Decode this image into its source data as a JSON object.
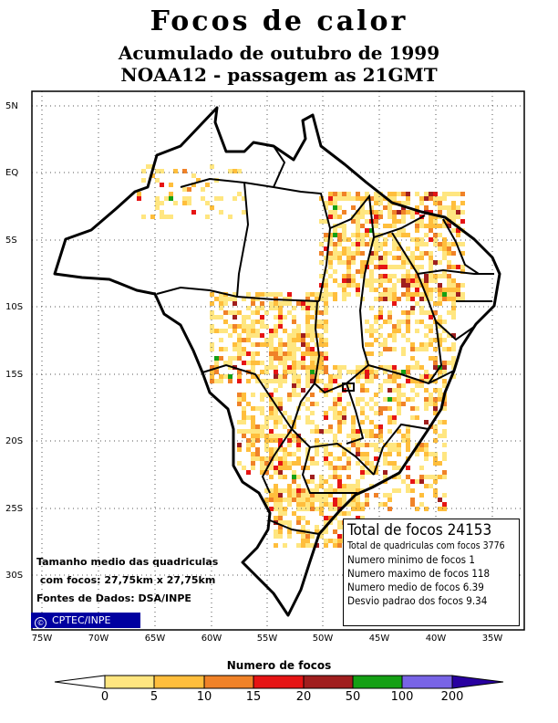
{
  "title": "Focos de calor",
  "subtitle1": "Acumulado de outubro de 1999",
  "subtitle2": "NOAA12 - passagem as 21GMT",
  "lat_labels": [
    "5N",
    "EQ",
    "5S",
    "10S",
    "15S",
    "20S",
    "25S",
    "30S"
  ],
  "lon_labels": [
    "75W",
    "70W",
    "65W",
    "60W",
    "55W",
    "50W",
    "45W",
    "40W",
    "35W"
  ],
  "stats": {
    "total": "Total de focos 24153",
    "quadriculas": "Total de quadriculas com focos 3776",
    "minimo": "Numero minimo de focos 1",
    "maximo": "Numero maximo de focos 118",
    "medio": "Numero medio de focos 6.39",
    "desvio": "Desvio padrao dos focos 9.34"
  },
  "info": {
    "line1": "Tamanho medio das quadriculas",
    "line2": " com focos: 27,75km x 27,75km",
    "line3": "Fontes de Dados: DSA/INPE"
  },
  "credit": {
    "copyright": "©",
    "text": "CPTEC/INPE"
  },
  "legend": {
    "title": "Numero de focos",
    "labels": [
      "0",
      "5",
      "10",
      "15",
      "20",
      "50",
      "100",
      "200"
    ],
    "colors": [
      "#ffffff",
      "#ffe680",
      "#ffbe3c",
      "#f08228",
      "#e61414",
      "#a01e1e",
      "#14a014",
      "#7864e6",
      "#2800a0"
    ]
  }
}
